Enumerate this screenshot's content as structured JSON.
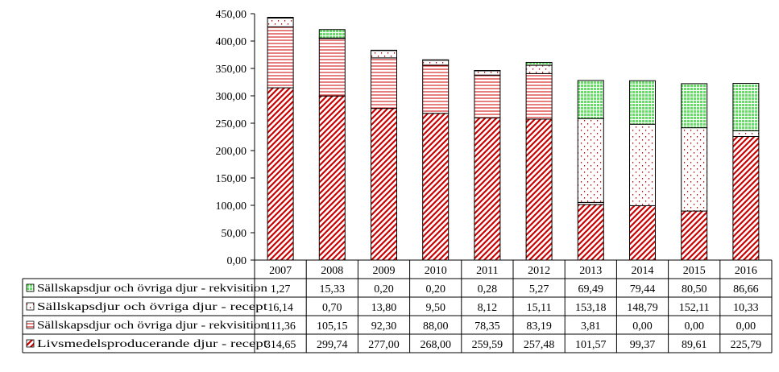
{
  "chart_data": {
    "type": "bar",
    "stacked": true,
    "categories": [
      "2007",
      "2008",
      "2009",
      "2010",
      "2011",
      "2012",
      "2013",
      "2014",
      "2015",
      "2016"
    ],
    "ylim": [
      0,
      450
    ],
    "y_ticks": [
      "0,00",
      "50,00",
      "100,00",
      "150,00",
      "200,00",
      "250,00",
      "300,00",
      "350,00",
      "400,00",
      "450,00"
    ],
    "legend_position": "data-table-below",
    "series": [
      {
        "name": "Livsmedelsproducerande djur - recept",
        "color": "#cc0000",
        "pattern": "diagonal-stripes",
        "values": [
          314.65,
          299.74,
          277.0,
          268.0,
          259.59,
          257.48,
          101.57,
          99.37,
          89.61,
          225.79
        ],
        "labels": [
          "314,65",
          "299,74",
          "277,00",
          "268,00",
          "259,59",
          "257,48",
          "101,57",
          "99,37",
          "89,61",
          "225,79"
        ]
      },
      {
        "name": "Sällskapsdjur och övriga djur - rekvisition",
        "color": "#cc0000",
        "pattern": "horizontal-lines",
        "values": [
          111.36,
          105.15,
          92.3,
          88.0,
          78.35,
          83.19,
          3.81,
          0.0,
          0.0,
          0.0
        ],
        "labels": [
          "111,36",
          "105,15",
          "92,30",
          "88,00",
          "78,35",
          "83,19",
          "3,81",
          "0,00",
          "0,00",
          "0,00"
        ]
      },
      {
        "name": "Sällskapsdjur och övriga djur - recept",
        "color": "#cc0000",
        "pattern": "dots",
        "values": [
          16.14,
          0.7,
          13.8,
          9.5,
          8.12,
          15.11,
          153.18,
          148.79,
          152.11,
          10.33
        ],
        "labels": [
          "16,14",
          "0,70",
          "13,80",
          "9,50",
          "8,12",
          "15,11",
          "153,18",
          "148,79",
          "152,11",
          "10,33"
        ]
      },
      {
        "name": "Sällskapsdjur och övriga djur - rekvisition",
        "color": "#33cc33",
        "pattern": "grid",
        "values": [
          1.27,
          15.33,
          0.2,
          0.2,
          0.28,
          5.27,
          69.49,
          79.44,
          80.5,
          86.66
        ],
        "labels": [
          "1,27",
          "15,33",
          "0,20",
          "0,20",
          "0,28",
          "5,27",
          "69,49",
          "79,44",
          "80,50",
          "86,66"
        ]
      }
    ]
  }
}
